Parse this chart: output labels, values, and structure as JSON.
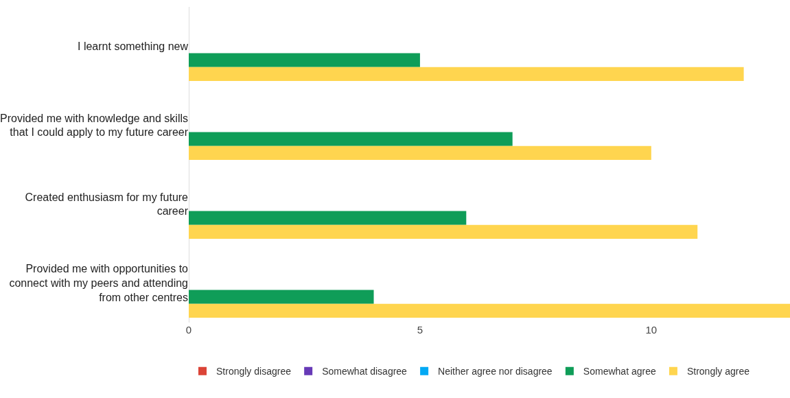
{
  "chart_data": {
    "type": "bar",
    "orientation": "horizontal",
    "categories": [
      "I learnt something new",
      "Provided me with knowledge and skills that I could apply to my future career",
      "Created enthusiasm for my future career",
      "Provided me with opportunities to connect with my peers and attending from other centres"
    ],
    "series": [
      {
        "name": "Strongly disagree",
        "color": "#db4437",
        "values": [
          0,
          0,
          0,
          0
        ]
      },
      {
        "name": "Somewhat disagree",
        "color": "#673ab7",
        "values": [
          0,
          0,
          0,
          0
        ]
      },
      {
        "name": "Neither agree nor disagree",
        "color": "#03a9f4",
        "values": [
          0,
          0,
          0,
          0
        ]
      },
      {
        "name": "Somewhat agree",
        "color": "#0f9d58",
        "values": [
          5,
          7,
          6,
          4
        ]
      },
      {
        "name": "Strongly agree",
        "color": "#ffd54f",
        "values": [
          12,
          10,
          11,
          13
        ]
      }
    ],
    "xlim": [
      0,
      13
    ],
    "xticks": [
      0,
      5,
      10
    ],
    "grid": false,
    "legend": "bottom"
  }
}
